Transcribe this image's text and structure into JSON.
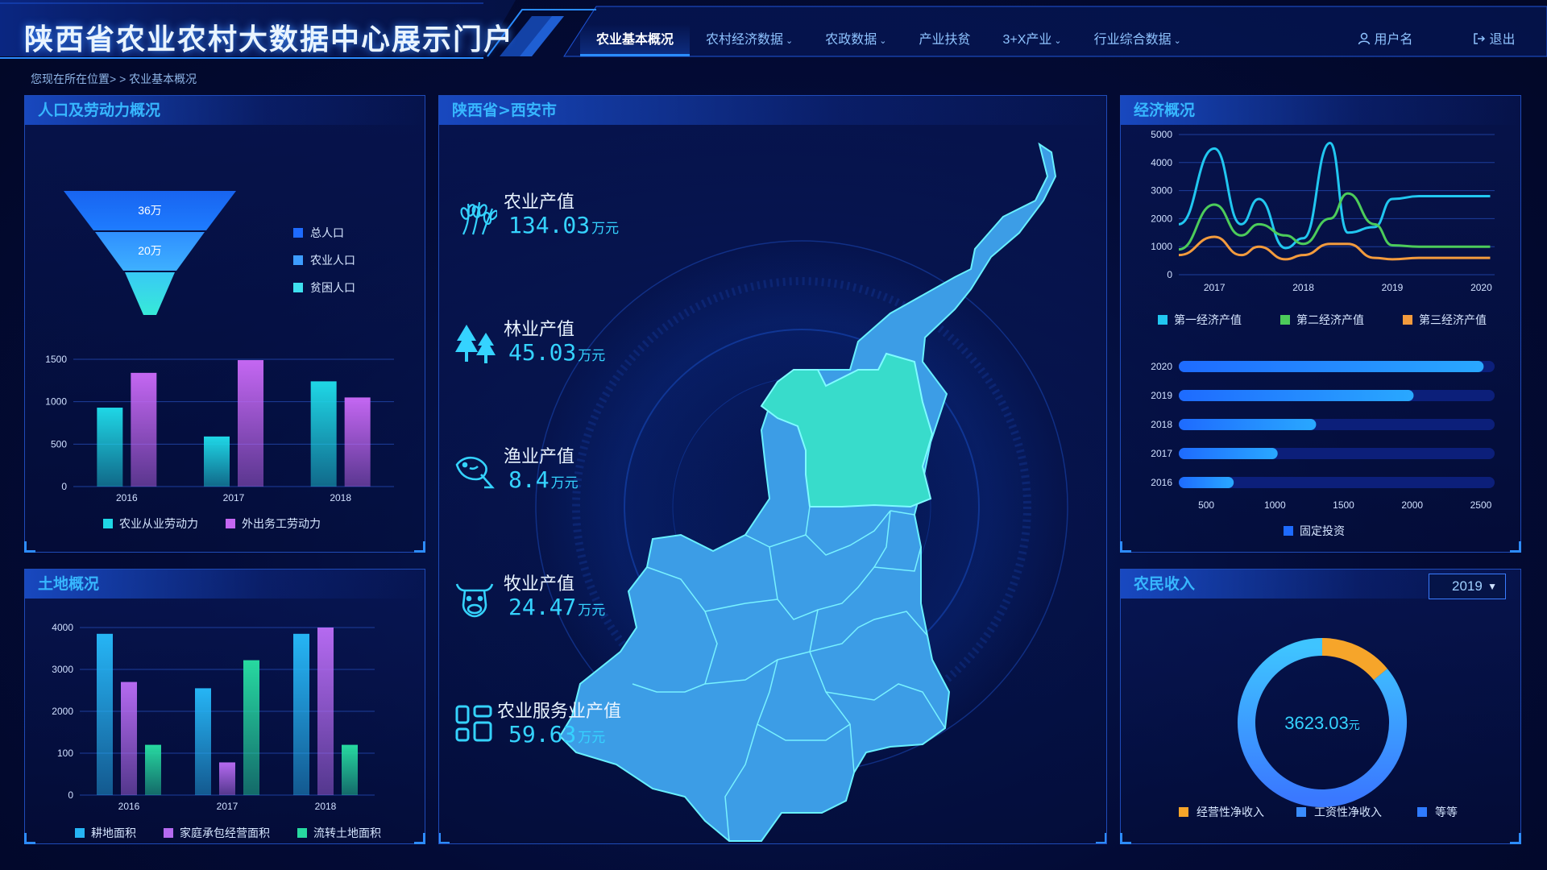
{
  "header": {
    "title": "陕西省农业农村大数据中心展示门户",
    "nav": [
      {
        "label": "农业基本概况",
        "active": true,
        "dropdown": false
      },
      {
        "label": "农村经济数据",
        "active": false,
        "dropdown": true
      },
      {
        "label": "农政数据",
        "active": false,
        "dropdown": true
      },
      {
        "label": "产业扶贫",
        "active": false,
        "dropdown": false
      },
      {
        "label": "3+X产业",
        "active": false,
        "dropdown": true
      },
      {
        "label": "行业综合数据",
        "active": false,
        "dropdown": true
      }
    ],
    "user_label": "用户名",
    "logout_label": "退出"
  },
  "breadcrumb": "您现在所在位置> > 农业基本概况",
  "population_panel": {
    "title": "人口及劳动力概况",
    "funnel": {
      "labels": [
        "36万",
        "20万"
      ],
      "legend": [
        "总人口",
        "农业人口",
        "贫困人口"
      ],
      "colors": [
        "#1e6bff",
        "#3d9dff",
        "#3fe0ef"
      ]
    }
  },
  "land_panel": {
    "title": "土地概况"
  },
  "map_panel": {
    "title": "陕西省>西安市",
    "stats": [
      {
        "label": "农业产值",
        "value": "134.03",
        "unit": "万元",
        "icon": "wheat-icon"
      },
      {
        "label": "林业产值",
        "value": "45.03",
        "unit": "万元",
        "icon": "tree-icon"
      },
      {
        "label": "渔业产值",
        "value": "8.4",
        "unit": "万元",
        "icon": "fish-icon"
      },
      {
        "label": "牧业产值",
        "value": "24.47",
        "unit": "万元",
        "icon": "cow-icon"
      },
      {
        "label": "农业服务业产值",
        "value": "59.63",
        "unit": "万元",
        "icon": "grid-icon"
      }
    ]
  },
  "economy_panel": {
    "title": "经济概况"
  },
  "income_panel": {
    "title": "农民收入",
    "year_selected": "2019",
    "center_value": "3623.03",
    "center_unit": "元"
  },
  "chart_data": [
    {
      "id": "labor",
      "type": "bar",
      "categories": [
        "2016",
        "2017",
        "2018"
      ],
      "series": [
        {
          "name": "农业从业劳动力",
          "values": [
            930,
            590,
            1240
          ],
          "color": "#1fd7e6"
        },
        {
          "name": "外出务工劳动力",
          "values": [
            1340,
            1490,
            1050
          ],
          "color": "#c467f2"
        }
      ],
      "ylim": [
        0,
        1500
      ],
      "yticks": [
        "0",
        "500",
        "1000",
        "1500"
      ]
    },
    {
      "id": "land",
      "type": "bar",
      "categories": [
        "2016",
        "2017",
        "2018"
      ],
      "series": [
        {
          "name": "耕地面积",
          "values": [
            3850,
            2550,
            3850
          ],
          "color": "#26b5f5"
        },
        {
          "name": "家庭承包经营面积",
          "values": [
            2700,
            780,
            4000
          ],
          "color": "#b56af0"
        },
        {
          "name": "流转土地面积",
          "values": [
            1200,
            3220,
            1200
          ],
          "color": "#27d9a0"
        }
      ],
      "ylim": [
        0,
        4000
      ],
      "yticks": [
        "0",
        "100",
        "2000",
        "3000",
        "4000"
      ]
    },
    {
      "id": "economy",
      "type": "line",
      "x": [
        2016.6,
        2017,
        2017.3,
        2017.5,
        2017.8,
        2018,
        2018.3,
        2018.5,
        2018.8,
        2019,
        2019.3,
        2019.6,
        2019.8,
        2020,
        2020.1
      ],
      "xticks": [
        "2017",
        "2018",
        "2019",
        "2020"
      ],
      "series": [
        {
          "name": "第一经济产值",
          "color": "#21c7f0",
          "values": [
            1800,
            4500,
            1800,
            2700,
            950,
            1300,
            4700,
            1500,
            1700,
            2700,
            2800,
            2800,
            2800,
            2800,
            2800
          ]
        },
        {
          "name": "第二经济产值",
          "color": "#4ccc5a",
          "values": [
            900,
            2500,
            1400,
            1800,
            1400,
            1100,
            2000,
            2900,
            1800,
            1050,
            1000,
            1000,
            1000,
            1000,
            1000
          ]
        },
        {
          "name": "第三经济产值",
          "color": "#f39b3d",
          "values": [
            700,
            1350,
            700,
            1000,
            550,
            700,
            1100,
            1100,
            600,
            550,
            600,
            600,
            600,
            600,
            600
          ]
        }
      ],
      "ylim": [
        0,
        5000
      ],
      "yticks": [
        "0",
        "1000",
        "2000",
        "3000",
        "4000",
        "5000"
      ]
    },
    {
      "id": "investment",
      "type": "bar",
      "orientation": "horizontal",
      "categories": [
        "2020",
        "2019",
        "2018",
        "2017",
        "2016"
      ],
      "series": [
        {
          "name": "固定投资",
          "values": [
            2520,
            2010,
            1300,
            1020,
            700
          ],
          "color": "#1e6bff"
        }
      ],
      "xlim": [
        300,
        2600
      ],
      "xticks": [
        "500",
        "1000",
        "1500",
        "2000",
        "2500"
      ]
    },
    {
      "id": "income",
      "type": "pie",
      "labels": [
        "经营性净收入",
        "工资性净收入",
        "等等"
      ],
      "values": [
        14,
        86,
        0
      ],
      "colors": [
        "#f6a52a",
        "#3a8dff",
        "#2f7bff"
      ]
    }
  ]
}
